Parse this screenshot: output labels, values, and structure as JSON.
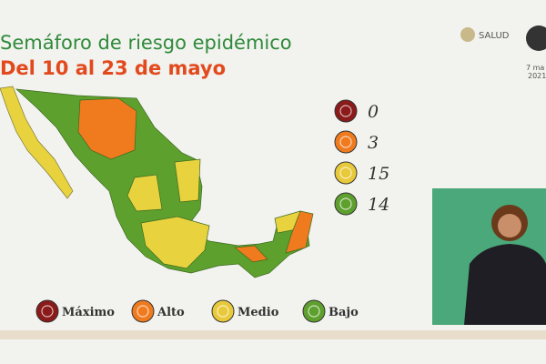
{
  "header": {
    "title": "Semáforo de riesgo epidémico",
    "subtitle": "Del 10 al 23 de mayo",
    "logo": "SALUD",
    "date": "7 ma",
    "year": "2021"
  },
  "levels": [
    {
      "name": "Máximo",
      "count": 0,
      "color": "#8b1a1a"
    },
    {
      "name": "Alto",
      "count": 3,
      "color": "#f07a1e"
    },
    {
      "name": "Medio",
      "count": 15,
      "color": "#e8c93a"
    },
    {
      "name": "Bajo",
      "count": 14,
      "color": "#5ea02e"
    }
  ]
}
